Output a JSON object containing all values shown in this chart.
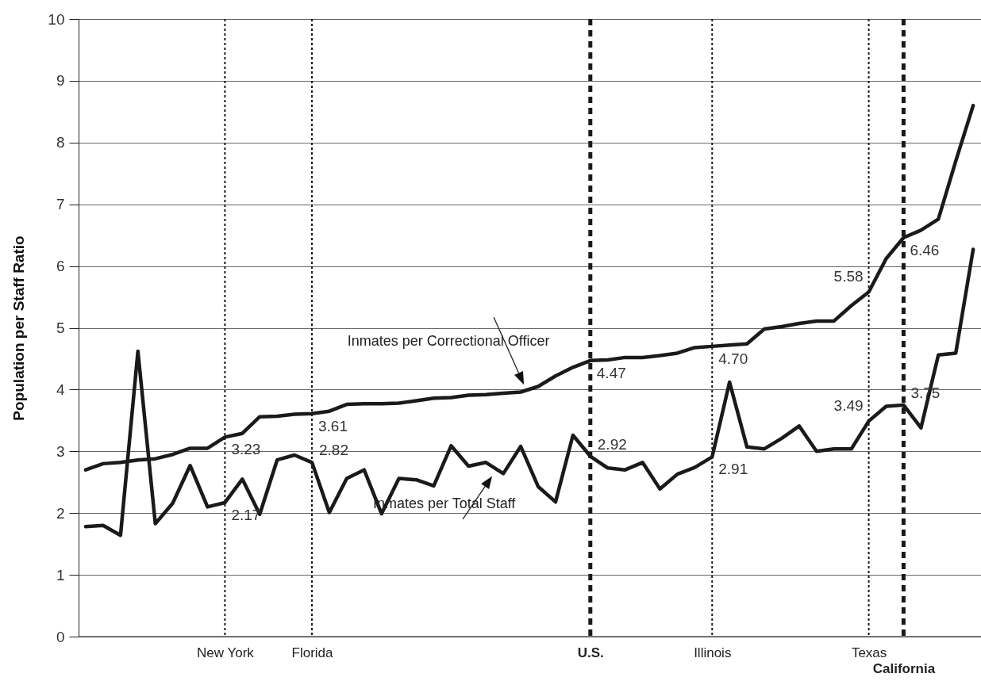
{
  "chart_data": {
    "type": "line",
    "ylabel": "Population per Staff Ratio",
    "categories": [
      null,
      null,
      null,
      null,
      null,
      null,
      null,
      null,
      "New York",
      null,
      null,
      null,
      null,
      "Florida",
      null,
      null,
      null,
      null,
      null,
      null,
      null,
      null,
      null,
      null,
      null,
      null,
      null,
      null,
      null,
      "U.S.",
      null,
      null,
      null,
      null,
      null,
      null,
      "Illinois",
      null,
      null,
      null,
      null,
      null,
      null,
      null,
      null,
      "Texas",
      null,
      "California",
      null,
      null,
      null,
      null
    ],
    "series": [
      {
        "name": "Inmates per Correctional Officer",
        "color": "#1a1a1a",
        "values": [
          2.7,
          2.8,
          2.82,
          2.86,
          2.88,
          2.95,
          3.05,
          3.05,
          3.23,
          3.29,
          3.56,
          3.57,
          3.6,
          3.61,
          3.65,
          3.76,
          3.77,
          3.77,
          3.78,
          3.82,
          3.86,
          3.87,
          3.91,
          3.92,
          3.94,
          3.96,
          4.05,
          4.22,
          4.36,
          4.47,
          4.48,
          4.52,
          4.52,
          4.55,
          4.59,
          4.68,
          4.7,
          4.72,
          4.74,
          4.98,
          5.02,
          5.07,
          5.11,
          5.11,
          5.36,
          5.58,
          6.12,
          6.46,
          6.58,
          6.76,
          7.7,
          8.6
        ],
        "value_labels": [
          null,
          null,
          null,
          null,
          null,
          null,
          null,
          null,
          "3.23",
          null,
          null,
          null,
          null,
          "3.61",
          null,
          null,
          null,
          null,
          null,
          null,
          null,
          null,
          null,
          null,
          null,
          null,
          null,
          null,
          null,
          "4.47",
          null,
          null,
          null,
          null,
          null,
          null,
          "4.70",
          null,
          null,
          null,
          null,
          null,
          null,
          null,
          null,
          "5.58",
          null,
          "6.46",
          null,
          null,
          null,
          null
        ]
      },
      {
        "name": "Inmates per Total Staff",
        "color": "#1a1a1a",
        "values": [
          1.78,
          1.8,
          1.64,
          4.62,
          1.83,
          2.16,
          2.77,
          2.1,
          2.17,
          2.55,
          1.98,
          2.86,
          2.94,
          2.82,
          2.01,
          2.56,
          2.7,
          1.99,
          2.56,
          2.54,
          2.44,
          3.09,
          2.76,
          2.82,
          2.64,
          3.08,
          2.43,
          2.18,
          3.26,
          2.92,
          2.73,
          2.7,
          2.82,
          2.39,
          2.63,
          2.74,
          2.91,
          4.12,
          3.07,
          3.04,
          3.21,
          3.41,
          3.0,
          3.04,
          3.04,
          3.49,
          3.73,
          3.75,
          3.38,
          4.56,
          4.59,
          6.27
        ],
        "value_labels": [
          null,
          null,
          null,
          null,
          null,
          null,
          null,
          null,
          "2.17",
          null,
          null,
          null,
          null,
          "2.82",
          null,
          null,
          null,
          null,
          null,
          null,
          null,
          null,
          null,
          null,
          null,
          null,
          null,
          null,
          null,
          "2.92",
          null,
          null,
          null,
          null,
          null,
          null,
          "2.91",
          null,
          null,
          null,
          null,
          null,
          null,
          null,
          null,
          "3.49",
          null,
          "3.75",
          null,
          null,
          null,
          null
        ]
      }
    ],
    "ylim": [
      0,
      10
    ],
    "yticks": [
      0,
      1,
      2,
      3,
      4,
      5,
      6,
      7,
      8,
      9,
      10
    ],
    "grid": "y",
    "line_style": "solid",
    "ref_lines": [
      {
        "axis": "x",
        "value": "New York",
        "line_style": "dotted"
      },
      {
        "axis": "x",
        "value": "Florida",
        "line_style": "dotted"
      },
      {
        "axis": "x",
        "value": "U.S.",
        "line_style": "dashed"
      },
      {
        "axis": "x",
        "value": "Illinois",
        "line_style": "dotted"
      },
      {
        "axis": "x",
        "value": "Texas",
        "line_style": "dotted"
      },
      {
        "axis": "x",
        "value": "California",
        "line_style": "dashed"
      }
    ]
  }
}
